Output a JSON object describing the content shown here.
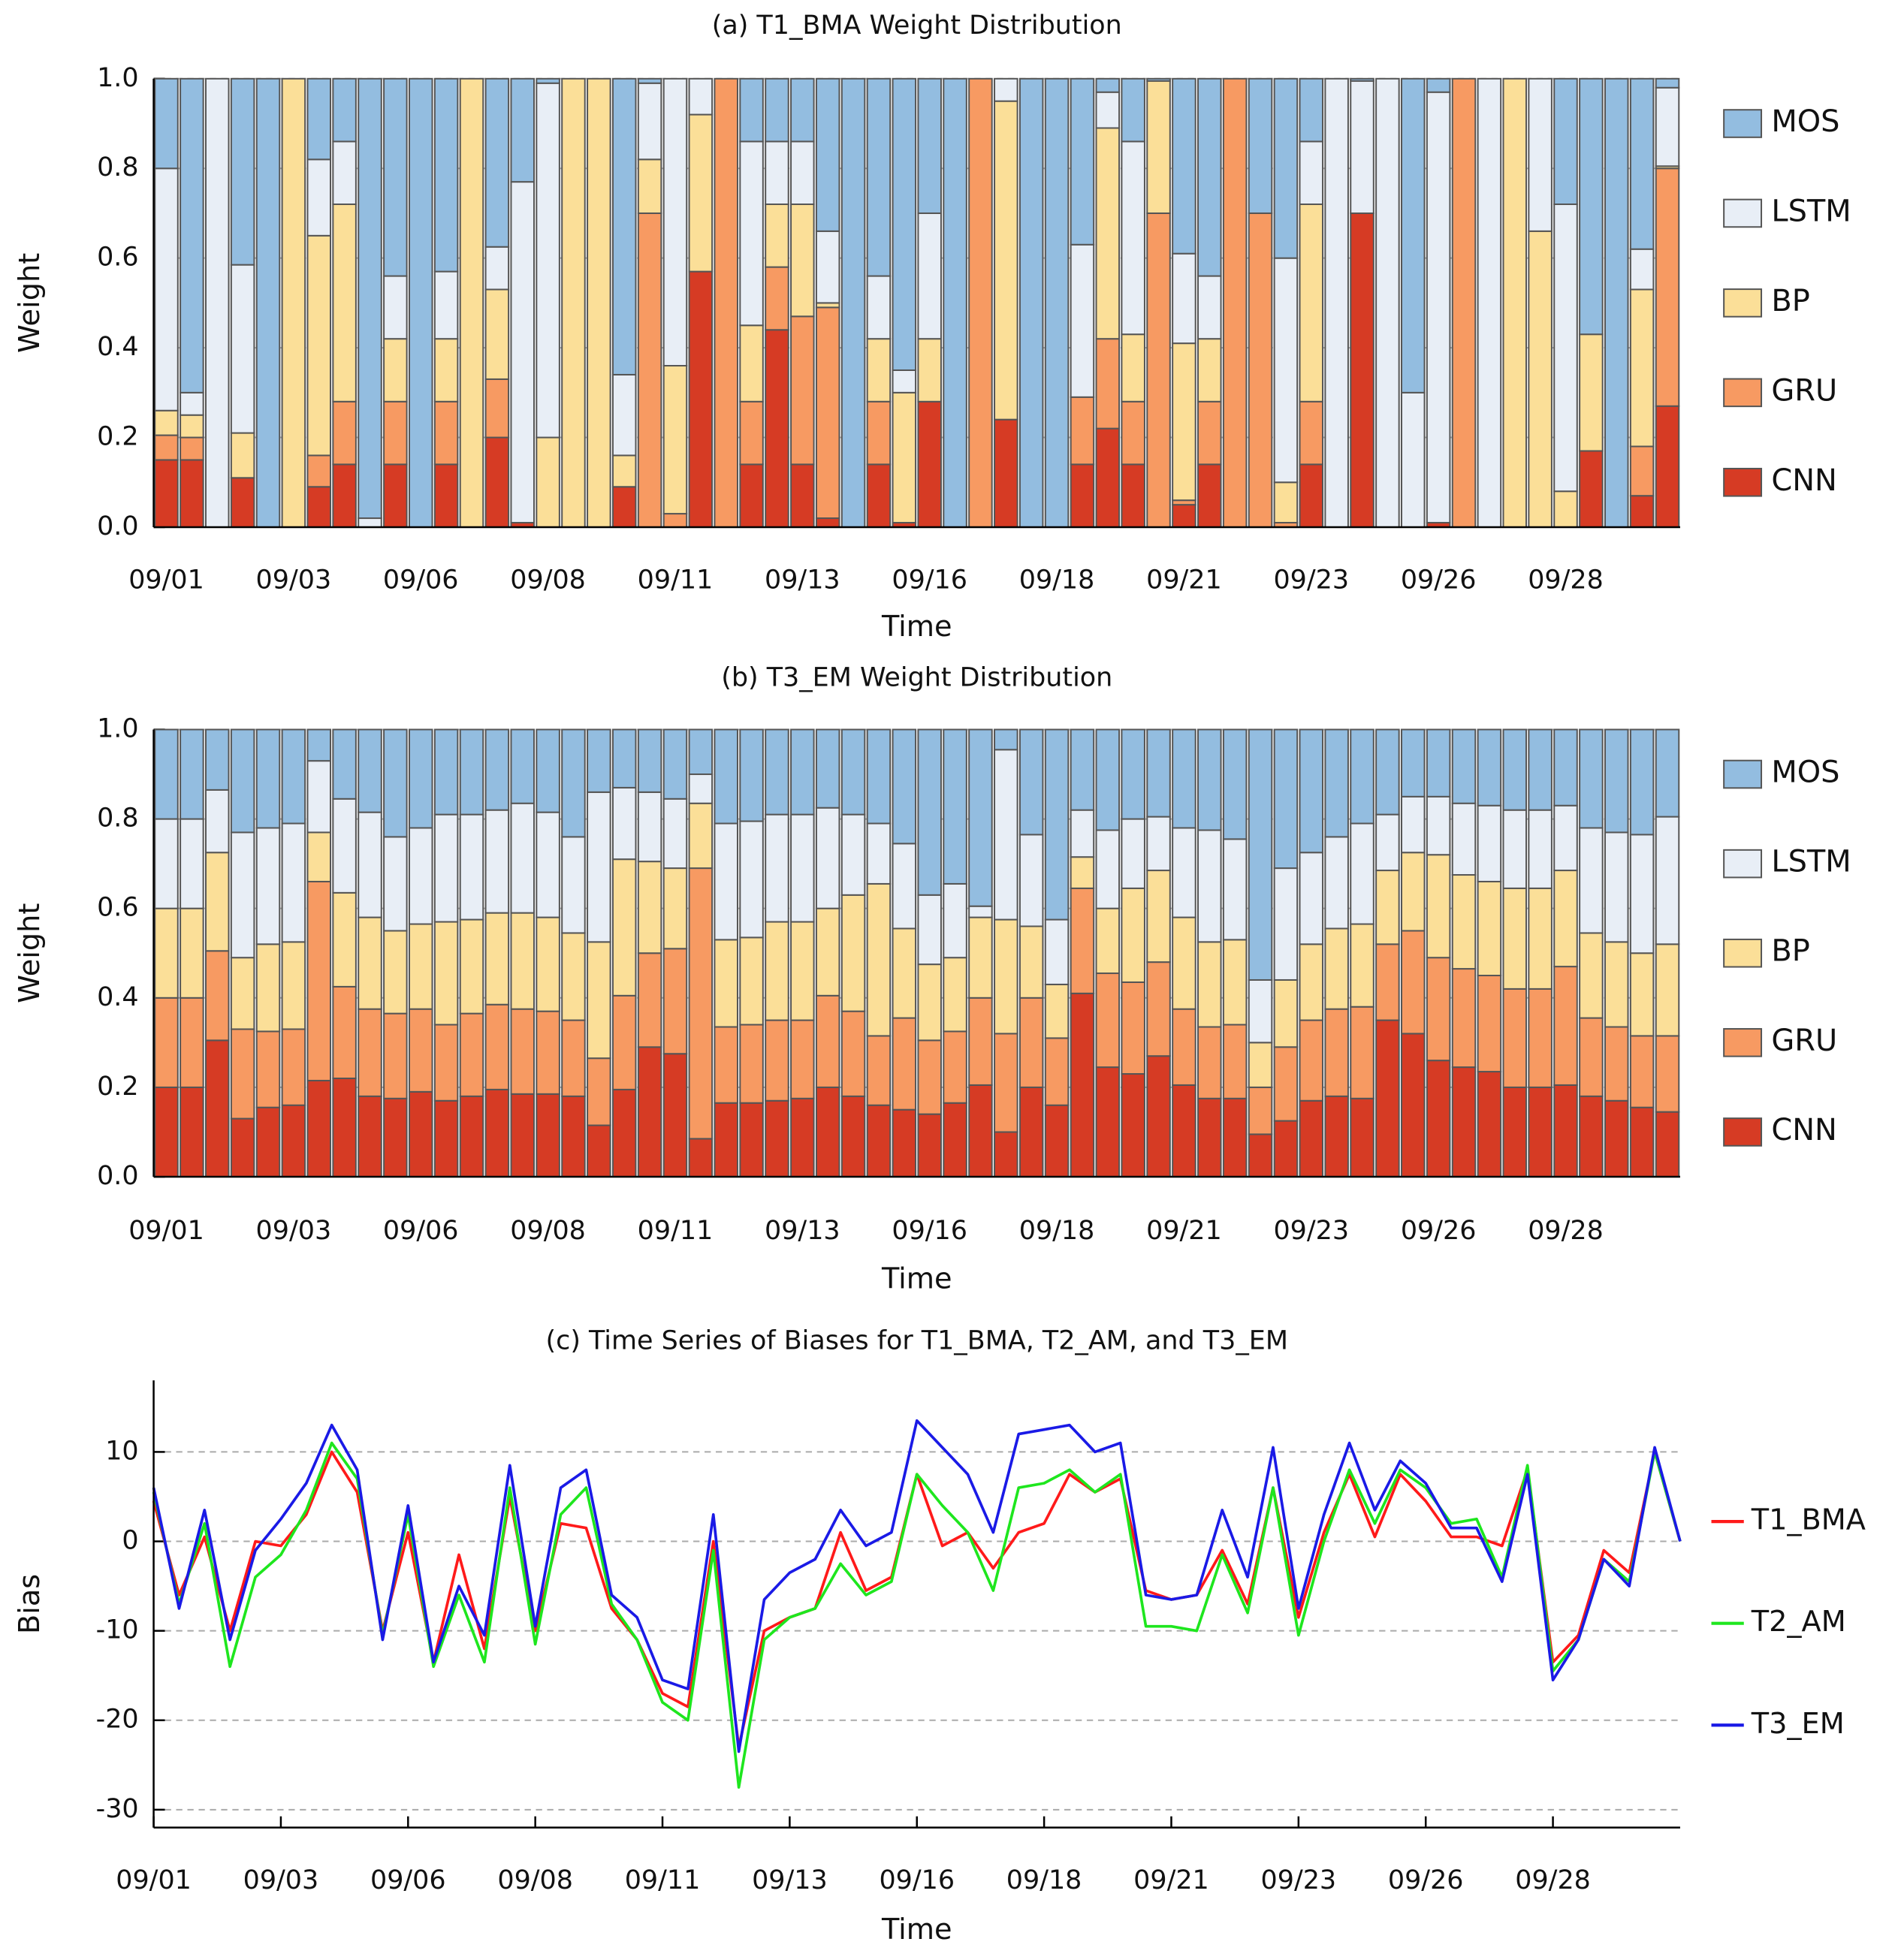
{
  "chart_data": [
    {
      "type": "bar",
      "stacked": true,
      "title": "(a) T1_BMA Weight Distribution",
      "xlabel": "Time",
      "ylabel": "Weight",
      "legend": "right",
      "grid": true,
      "categories": [
        "09/01",
        null,
        null,
        null,
        null,
        "09/03",
        null,
        null,
        null,
        null,
        "09/06",
        null,
        null,
        null,
        null,
        "09/08",
        null,
        null,
        null,
        null,
        "09/11",
        null,
        null,
        null,
        null,
        "09/13",
        null,
        null,
        null,
        null,
        "09/16",
        null,
        null,
        null,
        null,
        "09/18",
        null,
        null,
        null,
        null,
        "09/21",
        null,
        null,
        null,
        null,
        "09/23",
        null,
        null,
        null,
        null,
        "09/26",
        null,
        null,
        null,
        null,
        "09/28",
        null,
        null,
        null,
        null
      ],
      "ylim": [
        0,
        1
      ],
      "yticks": [
        {
          "value": 0,
          "label": "0.0"
        },
        0.2,
        0.4,
        0.6,
        0.8,
        {
          "value": 1,
          "label": "1.0"
        }
      ],
      "series": [
        {
          "name": "CNN",
          "color": "#d63b24",
          "values": [
            0.15,
            0.15,
            0,
            0.11,
            0,
            0,
            0.09,
            0.14,
            0,
            0.14,
            0,
            0.14,
            0,
            0.2,
            0.01,
            0,
            0,
            0,
            0.09,
            0,
            0,
            0.57,
            0,
            0.14,
            0.44,
            0.14,
            0.02,
            0,
            0.14,
            0.01,
            0.28,
            0,
            0,
            0.24,
            0,
            0,
            0.14,
            0.22,
            0.14,
            0,
            0.05,
            0.14,
            0,
            0,
            0,
            0.14,
            0,
            0.7,
            0,
            0,
            0.01,
            0,
            0,
            0,
            0,
            0,
            0.17,
            0,
            0.07,
            0.27
          ]
        },
        {
          "name": "GRU",
          "color": "#f79a62",
          "values": [
            0.055,
            0.05,
            0,
            0,
            0,
            0,
            0.07,
            0.14,
            0,
            0.14,
            0,
            0.14,
            0,
            0.13,
            0,
            0,
            0,
            0,
            0,
            0.7,
            0.03,
            0,
            1,
            0.14,
            0.14,
            0.33,
            0.47,
            0,
            0.14,
            0,
            0,
            0,
            1,
            0,
            0,
            0,
            0.15,
            0.2,
            0.14,
            0.7,
            0.01,
            0.14,
            1,
            0.7,
            0.01,
            0.14,
            0,
            0,
            0,
            0,
            0,
            1,
            0,
            0,
            0,
            0,
            0,
            0,
            0.11,
            0.53
          ]
        },
        {
          "name": "BP",
          "color": "#fbdf98",
          "values": [
            0.055,
            0.05,
            0,
            0.1,
            0,
            1,
            0.49,
            0.44,
            0,
            0.14,
            0,
            0.14,
            1,
            0.2,
            0,
            0.2,
            1,
            1,
            0.07,
            0.12,
            0.33,
            0.35,
            0,
            0.17,
            0.14,
            0.25,
            0.01,
            0,
            0.14,
            0.29,
            0.14,
            0,
            0,
            0.71,
            0,
            0,
            0,
            0.47,
            0.15,
            0.295,
            0.35,
            0.14,
            0,
            0,
            0.09,
            0.44,
            0,
            0,
            0,
            0,
            0,
            0,
            0,
            1,
            0.66,
            0.08,
            0.26,
            0,
            0.35,
            0.005
          ]
        },
        {
          "name": "LSTM",
          "color": "#e8eef6",
          "values": [
            0.54,
            0.05,
            1,
            0.375,
            0,
            0,
            0.17,
            0.14,
            0.02,
            0.14,
            0,
            0.15,
            0,
            0.095,
            0.76,
            0.79,
            0,
            0,
            0.18,
            0.17,
            0.64,
            0.08,
            0,
            0.41,
            0.14,
            0.14,
            0.16,
            0,
            0.14,
            0.05,
            0.28,
            0,
            0,
            0.05,
            0,
            0,
            0.34,
            0.08,
            0.43,
            0,
            0.2,
            0.14,
            0,
            0,
            0.5,
            0.14,
            1,
            0.295,
            1,
            0.3,
            0.96,
            0,
            1,
            0,
            0.34,
            0.64,
            0,
            0,
            0.09,
            0.175
          ]
        },
        {
          "name": "MOS",
          "color": "#93bde0",
          "values": [
            0.2,
            0.7,
            0,
            0.415,
            1,
            0,
            0.18,
            0.14,
            0.98,
            0.44,
            1,
            0.43,
            0,
            0.375,
            0.23,
            0.01,
            0,
            0,
            0.66,
            0.01,
            0,
            0,
            0,
            0.14,
            0.14,
            0.14,
            0.34,
            1,
            0.44,
            0.65,
            0.3,
            1,
            0,
            0,
            1,
            1,
            0.37,
            0.03,
            0.14,
            0.005,
            0.39,
            0.44,
            0,
            0.3,
            0.4,
            0.14,
            0,
            0.005,
            0,
            0.7,
            0.03,
            0,
            0,
            0,
            0,
            0.28,
            0.57,
            1,
            0.38,
            0.02
          ]
        }
      ]
    },
    {
      "type": "bar",
      "stacked": true,
      "title": "(b) T3_EM Weight Distribution",
      "xlabel": "Time",
      "ylabel": "Weight",
      "legend": "right",
      "grid": true,
      "categories": [
        "09/01",
        null,
        null,
        null,
        null,
        "09/03",
        null,
        null,
        null,
        null,
        "09/06",
        null,
        null,
        null,
        null,
        "09/08",
        null,
        null,
        null,
        null,
        "09/11",
        null,
        null,
        null,
        null,
        "09/13",
        null,
        null,
        null,
        null,
        "09/16",
        null,
        null,
        null,
        null,
        "09/18",
        null,
        null,
        null,
        null,
        "09/21",
        null,
        null,
        null,
        null,
        "09/23",
        null,
        null,
        null,
        null,
        "09/26",
        null,
        null,
        null,
        null,
        "09/28",
        null,
        null,
        null,
        null
      ],
      "ylim": [
        0,
        1
      ],
      "yticks": [
        {
          "value": 0,
          "label": "0.0"
        },
        0.2,
        0.4,
        0.6,
        0.8,
        {
          "value": 1,
          "label": "1.0"
        }
      ],
      "series": [
        {
          "name": "CNN",
          "color": "#d63b24",
          "values": [
            0.2,
            0.2,
            0.305,
            0.13,
            0.155,
            0.16,
            0.215,
            0.22,
            0.18,
            0.175,
            0.19,
            0.17,
            0.18,
            0.195,
            0.185,
            0.185,
            0.18,
            0.115,
            0.195,
            0.29,
            0.275,
            0.085,
            0.165,
            0.165,
            0.17,
            0.175,
            0.2,
            0.18,
            0.16,
            0.15,
            0.14,
            0.165,
            0.205,
            0.1,
            0.2,
            0.16,
            0.41,
            0.245,
            0.23,
            0.27,
            0.205,
            0.175,
            0.175,
            0.095,
            0.125,
            0.17,
            0.18,
            0.175,
            0.35,
            0.32,
            0.26,
            0.245,
            0.235,
            0.2,
            0.2,
            0.205,
            0.18,
            0.17,
            0.155,
            0.145
          ]
        },
        {
          "name": "GRU",
          "color": "#f79a62",
          "values": [
            0.2,
            0.2,
            0.2,
            0.2,
            0.17,
            0.17,
            0.445,
            0.205,
            0.195,
            0.19,
            0.185,
            0.17,
            0.185,
            0.19,
            0.19,
            0.185,
            0.17,
            0.15,
            0.21,
            0.21,
            0.235,
            0.605,
            0.17,
            0.175,
            0.18,
            0.175,
            0.205,
            0.19,
            0.155,
            0.205,
            0.165,
            0.16,
            0.195,
            0.22,
            0.2,
            0.15,
            0.235,
            0.21,
            0.205,
            0.21,
            0.17,
            0.16,
            0.165,
            0.105,
            0.165,
            0.18,
            0.195,
            0.205,
            0.17,
            0.23,
            0.23,
            0.22,
            0.215,
            0.22,
            0.22,
            0.265,
            0.175,
            0.165,
            0.16,
            0.17
          ]
        },
        {
          "name": "BP",
          "color": "#fbdf98",
          "values": [
            0.2,
            0.2,
            0.22,
            0.16,
            0.195,
            0.195,
            0.11,
            0.21,
            0.205,
            0.185,
            0.19,
            0.23,
            0.21,
            0.205,
            0.215,
            0.21,
            0.195,
            0.26,
            0.305,
            0.205,
            0.18,
            0.145,
            0.195,
            0.195,
            0.22,
            0.22,
            0.195,
            0.26,
            0.34,
            0.2,
            0.17,
            0.165,
            0.18,
            0.255,
            0.16,
            0.12,
            0.07,
            0.145,
            0.21,
            0.205,
            0.205,
            0.19,
            0.19,
            0.1,
            0.15,
            0.17,
            0.18,
            0.185,
            0.165,
            0.175,
            0.23,
            0.21,
            0.21,
            0.225,
            0.225,
            0.215,
            0.19,
            0.19,
            0.185,
            0.205
          ]
        },
        {
          "name": "LSTM",
          "color": "#e8eef6",
          "values": [
            0.2,
            0.2,
            0.14,
            0.28,
            0.26,
            0.265,
            0.16,
            0.21,
            0.235,
            0.21,
            0.215,
            0.24,
            0.235,
            0.23,
            0.245,
            0.235,
            0.215,
            0.335,
            0.16,
            0.155,
            0.155,
            0.065,
            0.26,
            0.26,
            0.24,
            0.24,
            0.225,
            0.18,
            0.135,
            0.19,
            0.155,
            0.165,
            0.025,
            0.38,
            0.205,
            0.145,
            0.105,
            0.175,
            0.155,
            0.12,
            0.2,
            0.25,
            0.225,
            0.14,
            0.25,
            0.205,
            0.205,
            0.225,
            0.125,
            0.125,
            0.13,
            0.16,
            0.17,
            0.175,
            0.175,
            0.145,
            0.235,
            0.245,
            0.265,
            0.285
          ]
        },
        {
          "name": "MOS",
          "color": "#93bde0",
          "values": [
            0.2,
            0.2,
            0.135,
            0.23,
            0.22,
            0.21,
            0.07,
            0.155,
            0.185,
            0.24,
            0.22,
            0.19,
            0.19,
            0.18,
            0.165,
            0.185,
            0.24,
            0.14,
            0.13,
            0.14,
            0.155,
            0.1,
            0.21,
            0.205,
            0.19,
            0.19,
            0.175,
            0.19,
            0.21,
            0.255,
            0.37,
            0.345,
            0.395,
            0.045,
            0.235,
            0.425,
            0.18,
            0.225,
            0.2,
            0.195,
            0.22,
            0.225,
            0.245,
            0.56,
            0.31,
            0.275,
            0.24,
            0.21,
            0.19,
            0.15,
            0.15,
            0.165,
            0.17,
            0.18,
            0.18,
            0.17,
            0.22,
            0.23,
            0.235,
            0.195
          ]
        }
      ]
    },
    {
      "type": "line",
      "title": "(c) Time Series of Biases for T1_BMA, T2_AM, and T3_EM",
      "xlabel": "Time",
      "ylabel": "Bias",
      "legend": "right",
      "grid": true,
      "categories": [
        "09/01",
        null,
        null,
        null,
        null,
        "09/03",
        null,
        null,
        null,
        null,
        "09/06",
        null,
        null,
        null,
        null,
        "09/08",
        null,
        null,
        null,
        null,
        "09/11",
        null,
        null,
        null,
        null,
        "09/13",
        null,
        null,
        null,
        null,
        "09/16",
        null,
        null,
        null,
        null,
        "09/18",
        null,
        null,
        null,
        null,
        "09/21",
        null,
        null,
        null,
        null,
        "09/23",
        null,
        null,
        null,
        null,
        "09/26",
        null,
        null,
        null,
        null,
        "09/28",
        null,
        null,
        null,
        null,
        null
      ],
      "ylim": [
        -32,
        18
      ],
      "yticks": [
        -30,
        -20,
        -10,
        0,
        10
      ],
      "series": [
        {
          "name": "T1_BMA",
          "color": "#ff1a1a",
          "values": [
            4.5,
            -6,
            0.5,
            -10,
            0,
            -0.5,
            3,
            10,
            5.5,
            -10,
            1,
            -13.5,
            -1.5,
            -12,
            5,
            -10,
            2,
            1.5,
            -7.5,
            -11,
            -17,
            -18.5,
            0,
            -23,
            -10,
            -8.5,
            -7.5,
            1,
            -5.5,
            -4,
            7.5,
            -0.5,
            1,
            -3,
            1,
            2,
            7.5,
            5.5,
            7,
            -5.5,
            -6.5,
            -6,
            -1,
            -7,
            6,
            -8.5,
            1,
            7.5,
            0.5,
            7.5,
            4.5,
            0.5,
            0.5,
            -0.5,
            8,
            -13.5,
            -10.5,
            -1,
            -3.5,
            10,
            0
          ]
        },
        {
          "name": "T2_AM",
          "color": "#1ee61e",
          "values": [
            5.5,
            -7,
            2,
            -14,
            -4,
            -1.5,
            3.5,
            11,
            7,
            -10.5,
            3,
            -14,
            -6,
            -13.5,
            6,
            -11.5,
            3,
            6,
            -7,
            -11,
            -18,
            -20,
            -1,
            -27.5,
            -11,
            -8.5,
            -7.5,
            -2.5,
            -6,
            -4.5,
            7.5,
            4,
            1,
            -5.5,
            6,
            6.5,
            8,
            5.5,
            7.5,
            -9.5,
            -9.5,
            -10,
            -1.5,
            -8,
            6,
            -10.5,
            0,
            8,
            2,
            8,
            6,
            2,
            2.5,
            -4,
            8.5,
            -14.5,
            -11,
            -2,
            -4.5,
            10,
            0
          ]
        },
        {
          "name": "T3_EM",
          "color": "#1a1ae6",
          "values": [
            6,
            -7.5,
            3.5,
            -11,
            -1,
            2.5,
            6.5,
            13,
            8,
            -11,
            4,
            -13.5,
            -5,
            -10.5,
            8.5,
            -9.5,
            6,
            8,
            -6,
            -8.5,
            -15.5,
            -16.5,
            3,
            -23.5,
            -6.5,
            -3.5,
            -2,
            3.5,
            -0.5,
            1,
            13.5,
            10.5,
            7.5,
            1,
            12,
            12.5,
            13,
            10,
            11,
            -6,
            -6.5,
            -6,
            3.5,
            -4,
            10.5,
            -7.5,
            3,
            11,
            3.5,
            9,
            6.5,
            1.5,
            1.5,
            -4.5,
            7.5,
            -15.5,
            -11,
            -2,
            -5,
            10.5,
            0
          ]
        }
      ]
    }
  ]
}
